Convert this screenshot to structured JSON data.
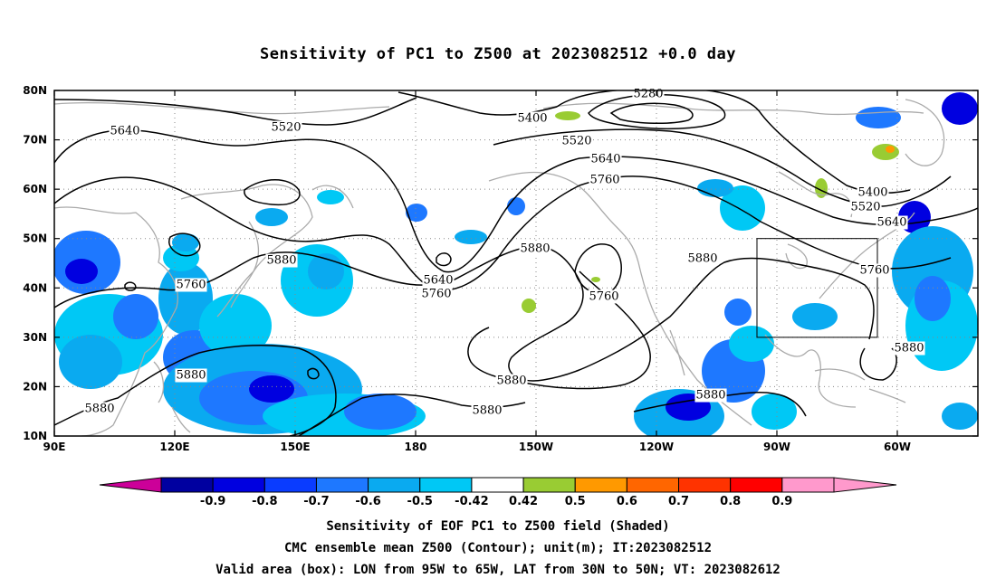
{
  "title": "Sensitivity of PC1 to Z500 at 2023082512 +0.0 day",
  "lat_ticks": [
    "80N",
    "70N",
    "60N",
    "50N",
    "40N",
    "30N",
    "20N",
    "10N"
  ],
  "lon_ticks": [
    "90E",
    "120E",
    "150E",
    "180",
    "150W",
    "120W",
    "90W",
    "60W"
  ],
  "contour_labels": [
    {
      "text": "5280"
    },
    {
      "text": "5400"
    },
    {
      "text": "5520"
    },
    {
      "text": "5640"
    },
    {
      "text": "5520"
    },
    {
      "text": "5640"
    },
    {
      "text": "5760"
    },
    {
      "text": "5400"
    },
    {
      "text": "5520"
    },
    {
      "text": "5640"
    },
    {
      "text": "5880"
    },
    {
      "text": "5760"
    },
    {
      "text": "5640"
    },
    {
      "text": "5760"
    },
    {
      "text": "5880"
    },
    {
      "text": "5760"
    },
    {
      "text": "5880"
    },
    {
      "text": "5760"
    },
    {
      "text": "5880"
    },
    {
      "text": "5880"
    },
    {
      "text": "5880"
    },
    {
      "text": "5880"
    },
    {
      "text": "5880"
    },
    {
      "text": "5880"
    }
  ],
  "colorbar": {
    "labels": [
      "-0.9",
      "-0.8",
      "-0.7",
      "-0.6",
      "-0.5",
      "-0.42",
      "0.42",
      "0.5",
      "0.6",
      "0.7",
      "0.8",
      "0.9"
    ],
    "colors": [
      "#cc0099",
      "#0000a0",
      "#0000e0",
      "#0a3cff",
      "#1e78ff",
      "#0aaaf0",
      "#00c8f5",
      "#ffffff",
      "#99cc33",
      "#ff9900",
      "#ff6600",
      "#ff3300",
      "#ff0000",
      "#ff99cc"
    ]
  },
  "valid_box": {
    "lon_from": "95W",
    "lon_to": "65W",
    "lat_from": "30N",
    "lat_to": "50N"
  },
  "captions": {
    "line1": "Sensitivity of EOF PC1 to Z500 field (Shaded)",
    "line2": "CMC ensemble mean Z500 (Contour); unit(m); IT:2023082512",
    "line3": "Valid area (box): LON from 95W to 65W, LAT from 30N to 50N; VT: 2023082612"
  }
}
